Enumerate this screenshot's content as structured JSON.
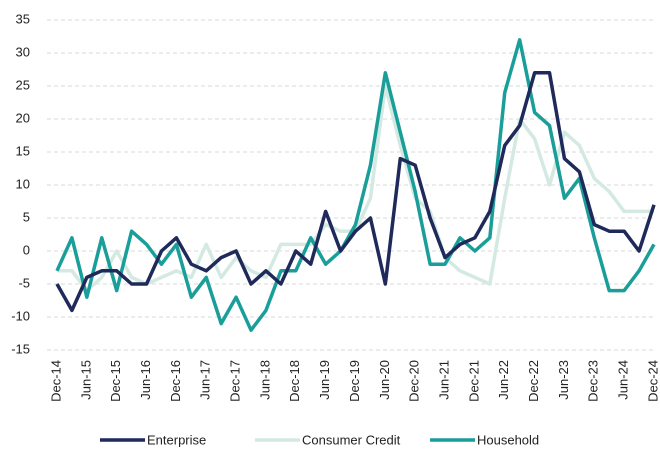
{
  "chart_data": {
    "type": "line",
    "categories": [
      "Dec-14",
      null,
      "Jun-15",
      null,
      "Dec-15",
      null,
      "Jun-16",
      null,
      "Dec-16",
      null,
      "Jun-17",
      null,
      "Dec-17",
      null,
      "Jun-18",
      null,
      "Dec-18",
      null,
      "Jun-19",
      null,
      "Dec-19",
      null,
      "Jun-20",
      null,
      "Dec-20",
      null,
      "Jun-21",
      null,
      "Dec-21",
      null,
      "Jun-22",
      null,
      "Dec-22",
      null,
      "Jun-23",
      null,
      "Dec-23",
      null,
      "Jun-24",
      null,
      "Dec-24"
    ],
    "series": [
      {
        "name": "Enterprise",
        "color": "#1f2a5a",
        "values": [
          -5,
          -9,
          -4,
          -3,
          -3,
          -5,
          -5,
          0,
          2,
          -2,
          -3,
          -1,
          0,
          -5,
          -3,
          -5,
          0,
          -2,
          6,
          0,
          3,
          5,
          -5,
          14,
          13,
          5,
          -1,
          1,
          2,
          6,
          16,
          19,
          27,
          27,
          14,
          12,
          4,
          3,
          3,
          0,
          7
        ]
      },
      {
        "name": "Consumer Credit",
        "color": "#d3e9e2",
        "values": [
          -3,
          -3,
          -6,
          -4,
          0,
          -4,
          -5,
          -4,
          -3,
          -4,
          1,
          -4,
          -1,
          -3,
          -4,
          1,
          1,
          1,
          4,
          3,
          3,
          8,
          25,
          16,
          8,
          6,
          -1,
          -3,
          -4,
          -5,
          8,
          20,
          17,
          10,
          18,
          16,
          11,
          9,
          6,
          6,
          6
        ]
      },
      {
        "name": "Household",
        "color": "#1a9e9a",
        "values": [
          -3,
          2,
          -7,
          2,
          -6,
          3,
          1,
          -2,
          1,
          -7,
          -4,
          -11,
          -7,
          -12,
          -9,
          -3,
          -3,
          2,
          -2,
          0,
          4,
          13,
          27,
          18,
          9,
          -2,
          -2,
          2,
          0,
          2,
          24,
          32,
          21,
          19,
          8,
          11,
          2,
          -6,
          -6,
          -3,
          1
        ]
      }
    ],
    "ylim": [
      -15,
      35
    ],
    "yticks": [
      -15,
      -10,
      -5,
      0,
      5,
      10,
      15,
      20,
      25,
      30,
      35
    ],
    "grid": true
  }
}
